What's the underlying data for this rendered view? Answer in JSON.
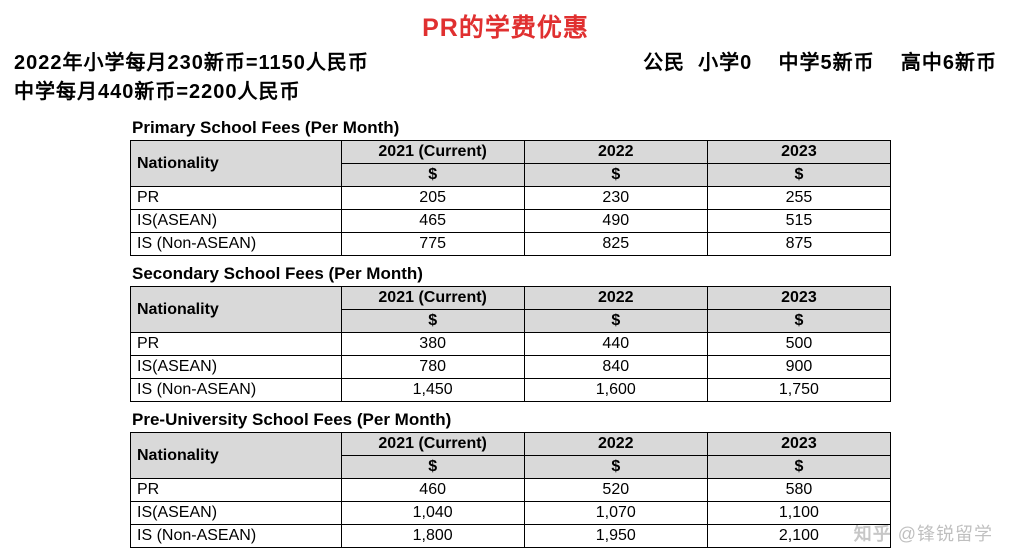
{
  "title": "PR的学费优惠",
  "subhead_left_line1": "2022年小学每月230新币=1150人民币",
  "subhead_right": "公民  小学0    中学5新币    高中6新币",
  "subhead_left_line2": "        中学每月440新币=2200人民币",
  "tables": [
    {
      "title": "Primary School Fees (Per Month)",
      "nationality_label": "Nationality",
      "years": [
        "2021 (Current)",
        "2022",
        "2023"
      ],
      "currency": "$",
      "rows": [
        {
          "nat": "PR",
          "v": [
            "205",
            "230",
            "255"
          ]
        },
        {
          "nat": "IS(ASEAN)",
          "v": [
            "465",
            "490",
            "515"
          ]
        },
        {
          "nat": "IS (Non-ASEAN)",
          "v": [
            "775",
            "825",
            "875"
          ]
        }
      ]
    },
    {
      "title": "Secondary School Fees (Per Month)",
      "nationality_label": "Nationality",
      "years": [
        "2021 (Current)",
        "2022",
        "2023"
      ],
      "currency": "$",
      "rows": [
        {
          "nat": "PR",
          "v": [
            "380",
            "440",
            "500"
          ]
        },
        {
          "nat": "IS(ASEAN)",
          "v": [
            "780",
            "840",
            "900"
          ]
        },
        {
          "nat": "IS (Non-ASEAN)",
          "v": [
            "1,450",
            "1,600",
            "1,750"
          ]
        }
      ]
    },
    {
      "title": "Pre-University School Fees (Per Month)",
      "nationality_label": "Nationality",
      "years": [
        "2021 (Current)",
        "2022",
        "2023"
      ],
      "currency": "$",
      "rows": [
        {
          "nat": "PR",
          "v": [
            "460",
            "520",
            "580"
          ]
        },
        {
          "nat": "IS(ASEAN)",
          "v": [
            "1,040",
            "1,070",
            "1,100"
          ]
        },
        {
          "nat": "IS (Non-ASEAN)",
          "v": [
            "1,800",
            "1,950",
            "2,100"
          ]
        }
      ]
    }
  ],
  "watermark": {
    "logo": "知乎",
    "text": "@锋锐留学"
  },
  "colors": {
    "title": "#e03030",
    "header_bg": "#d9d9d9",
    "border": "#000000",
    "text": "#000000",
    "background": "#ffffff"
  }
}
